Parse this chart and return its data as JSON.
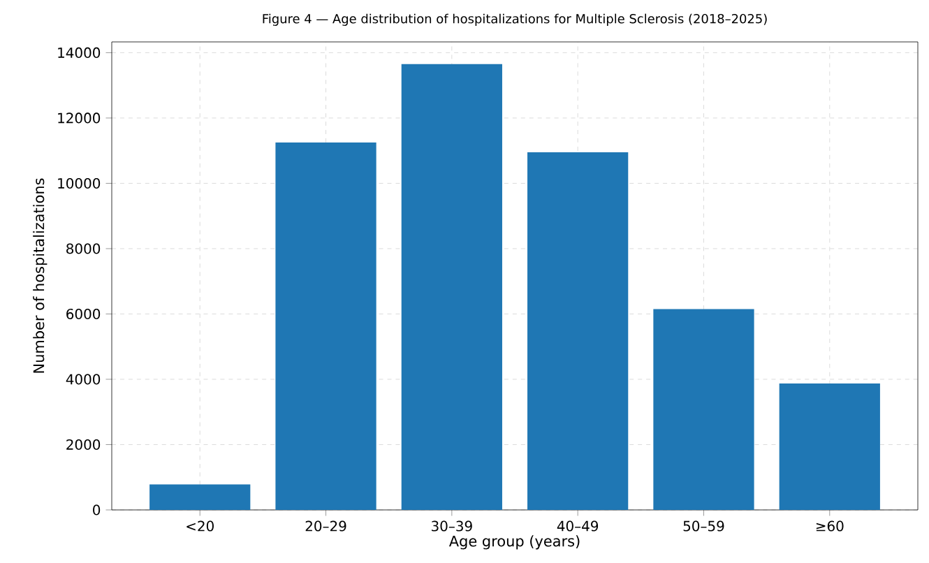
{
  "chart_data": {
    "type": "bar",
    "title": "Figure 4 — Age distribution of hospitalizations for Multiple Sclerosis (2018–2025)",
    "xlabel": "Age group (years)",
    "ylabel": "Number of hospitalizations",
    "categories": [
      "<20",
      "20–29",
      "30–39",
      "40–49",
      "50–59",
      "≥60"
    ],
    "values": [
      780,
      11250,
      13650,
      10950,
      6150,
      3870
    ],
    "color": "#1f77b4",
    "ylim": [
      0,
      14330
    ],
    "yticks": [
      0,
      2000,
      4000,
      6000,
      8000,
      10000,
      12000,
      14000
    ],
    "grid": true
  }
}
